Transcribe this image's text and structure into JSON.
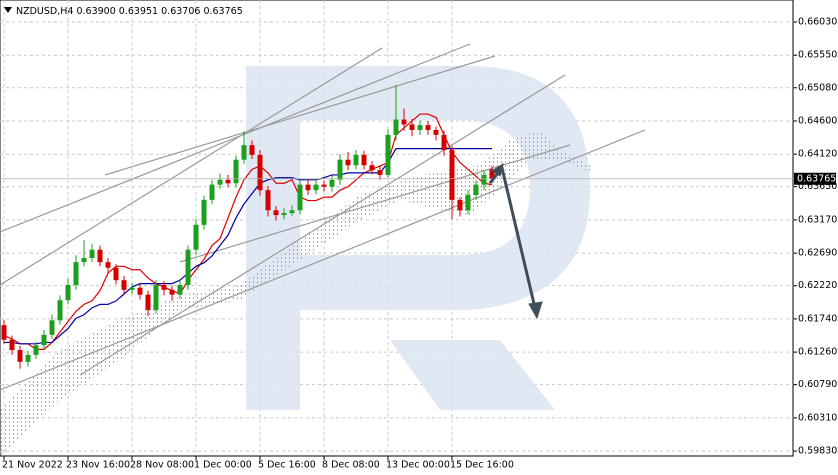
{
  "chart_data": {
    "type": "candlestick",
    "title": "NZDUSD,H4",
    "ohlc_labels": [
      "0.63900",
      "0.63951",
      "0.63706",
      "0.63765"
    ],
    "categories": [
      "21 Nov 2022",
      null,
      null,
      null,
      null,
      null,
      null,
      null,
      "23 Nov 16:00",
      null,
      null,
      null,
      null,
      null,
      null,
      null,
      "28 Nov 08:00",
      null,
      null,
      null,
      null,
      null,
      null,
      null,
      "1 Dec 00:00",
      null,
      null,
      null,
      null,
      null,
      null,
      null,
      "5 Dec 16:00",
      null,
      null,
      null,
      null,
      null,
      null,
      null,
      "8 Dec 08:00",
      null,
      null,
      null,
      null,
      null,
      null,
      null,
      "13 Dec 00:00",
      null,
      null,
      null,
      null,
      null,
      null,
      null,
      "15 Dec 16:00",
      null,
      null,
      null,
      null,
      null
    ],
    "open": [
      0.6165,
      0.6144,
      0.6129,
      0.6112,
      0.6122,
      0.6136,
      0.6151,
      0.6172,
      0.6201,
      0.6223,
      0.6256,
      0.6262,
      0.6274,
      0.6256,
      0.6248,
      0.623,
      0.6216,
      0.6219,
      0.6209,
      0.6187,
      0.6223,
      0.6216,
      0.6209,
      0.6223,
      0.6274,
      0.631,
      0.6346,
      0.6368,
      0.6375,
      0.637,
      0.6404,
      0.6425,
      0.6411,
      0.636,
      0.6331,
      0.6324,
      0.6327,
      0.6331,
      0.6368,
      0.636,
      0.6368,
      0.6365,
      0.6375,
      0.6404,
      0.6396,
      0.6411,
      0.6396,
      0.6389,
      0.6382,
      0.644,
      0.6462,
      0.6455,
      0.6447,
      0.6454,
      0.6447,
      0.644,
      0.6418,
      0.6346,
      0.6331,
      0.6353,
      0.6368,
      0.639
    ],
    "high": [
      0.6172,
      0.615,
      0.6135,
      0.6128,
      0.6141,
      0.6158,
      0.618,
      0.6208,
      0.6232,
      0.6266,
      0.6288,
      0.6282,
      0.628,
      0.6262,
      0.6253,
      0.6236,
      0.6226,
      0.6225,
      0.6215,
      0.623,
      0.6229,
      0.6222,
      0.623,
      0.628,
      0.6318,
      0.6352,
      0.6375,
      0.6384,
      0.6382,
      0.641,
      0.6445,
      0.6432,
      0.6418,
      0.6366,
      0.6337,
      0.6334,
      0.6338,
      0.6374,
      0.6375,
      0.6377,
      0.6374,
      0.6381,
      0.6412,
      0.6415,
      0.6418,
      0.6417,
      0.6402,
      0.6395,
      0.6448,
      0.6512,
      0.6478,
      0.6463,
      0.6461,
      0.646,
      0.6452,
      0.6446,
      0.6424,
      0.635,
      0.636,
      0.6374,
      0.6389,
      0.63951
    ],
    "low": [
      0.6138,
      0.6122,
      0.6102,
      0.6105,
      0.6116,
      0.613,
      0.6145,
      0.6166,
      0.6195,
      0.6216,
      0.625,
      0.6256,
      0.625,
      0.624,
      0.6224,
      0.6208,
      0.621,
      0.6202,
      0.6178,
      0.6182,
      0.6208,
      0.62,
      0.6203,
      0.6216,
      0.6266,
      0.6303,
      0.634,
      0.6362,
      0.6364,
      0.6364,
      0.6398,
      0.6405,
      0.6352,
      0.6322,
      0.6316,
      0.6318,
      0.6323,
      0.6325,
      0.6353,
      0.6354,
      0.6358,
      0.6358,
      0.6368,
      0.6389,
      0.639,
      0.639,
      0.6383,
      0.6375,
      0.6378,
      0.6432,
      0.6446,
      0.6438,
      0.644,
      0.644,
      0.6432,
      0.641,
      0.6318,
      0.6322,
      0.6325,
      0.6346,
      0.636,
      0.63706
    ],
    "close": [
      0.6144,
      0.6129,
      0.6112,
      0.6122,
      0.6136,
      0.6151,
      0.6172,
      0.6201,
      0.6223,
      0.6256,
      0.6262,
      0.6274,
      0.6256,
      0.6248,
      0.623,
      0.6216,
      0.6219,
      0.6209,
      0.6187,
      0.6223,
      0.6216,
      0.6209,
      0.6223,
      0.6274,
      0.631,
      0.6346,
      0.6368,
      0.6375,
      0.637,
      0.6404,
      0.6425,
      0.6411,
      0.636,
      0.6331,
      0.6324,
      0.6327,
      0.6331,
      0.6368,
      0.636,
      0.6368,
      0.6365,
      0.6375,
      0.6404,
      0.6396,
      0.6411,
      0.6396,
      0.6389,
      0.6382,
      0.644,
      0.6462,
      0.6455,
      0.6447,
      0.6454,
      0.6447,
      0.644,
      0.6418,
      0.6346,
      0.6331,
      0.6353,
      0.6368,
      0.6382,
      0.63765
    ],
    "up_color": "#1e9e1e",
    "down_color": "#d40000",
    "indicators": [
      {
        "color": "#e00000",
        "values": [
          0.615,
          0.6145,
          0.6138,
          0.6138,
          0.613,
          0.613,
          0.614,
          0.6155,
          0.617,
          0.6185,
          0.6195,
          0.62,
          0.6215,
          0.624,
          0.625,
          0.625,
          0.6245,
          0.6245,
          0.6233,
          0.6225,
          0.622,
          0.6215,
          0.621,
          0.623,
          0.6245,
          0.626,
          0.628,
          0.629,
          0.632,
          0.635,
          0.6375,
          0.639,
          0.6395,
          0.6385,
          0.637,
          0.637,
          0.6375,
          0.635,
          0.6345,
          0.6345,
          0.635,
          0.635,
          0.636,
          0.6365,
          0.6375,
          0.6385,
          0.639,
          0.6395,
          0.64,
          0.644,
          0.645,
          0.646,
          0.647,
          0.647,
          0.6465,
          0.644,
          0.6415,
          0.64,
          0.639,
          0.638,
          0.637,
          0.6368
        ]
      },
      {
        "color": "#0000a0",
        "values": [
          0.614,
          0.614,
          0.6138,
          0.6138,
          0.6138,
          0.614,
          0.614,
          0.615,
          0.616,
          0.6175,
          0.618,
          0.619,
          0.6195,
          0.6195,
          0.62,
          0.621,
          0.622,
          0.6225,
          0.6225,
          0.6225,
          0.6225,
          0.6225,
          0.623,
          0.624,
          0.625,
          0.6255,
          0.6265,
          0.628,
          0.6295,
          0.632,
          0.634,
          0.6355,
          0.637,
          0.6375,
          0.6378,
          0.6378,
          0.6378,
          0.6375,
          0.6375,
          0.6375,
          0.6378,
          0.6382,
          0.6382,
          0.6385,
          0.6385,
          0.6385,
          0.6385,
          0.6385,
          0.64,
          0.642,
          0.642,
          0.642,
          0.642,
          0.642,
          0.642,
          0.642,
          0.642,
          0.642,
          0.642,
          0.642,
          0.642,
          0.642
        ]
      }
    ],
    "ylim": [
      0.59759,
      0.66348
    ],
    "yticks": [
      {
        "value": 0.6603,
        "label": "0.66030"
      },
      {
        "value": 0.6555,
        "label": "0.65550"
      },
      {
        "value": 0.6508,
        "label": "0.65080"
      },
      {
        "value": 0.646,
        "label": "0.64600"
      },
      {
        "value": 0.6412,
        "label": "0.64120"
      },
      {
        "value": 0.6365,
        "label": "0.63650"
      },
      {
        "value": 0.6317,
        "label": "0.63170"
      },
      {
        "value": 0.6269,
        "label": "0.62690"
      },
      {
        "value": 0.6222,
        "label": "0.62220"
      },
      {
        "value": 0.6174,
        "label": "0.61740"
      },
      {
        "value": 0.6126,
        "label": "0.61260"
      },
      {
        "value": 0.6079,
        "label": "0.60790"
      },
      {
        "value": 0.6031,
        "label": "0.60310"
      },
      {
        "value": 0.5983,
        "label": "0.59830"
      }
    ],
    "grid": true
  }
}
